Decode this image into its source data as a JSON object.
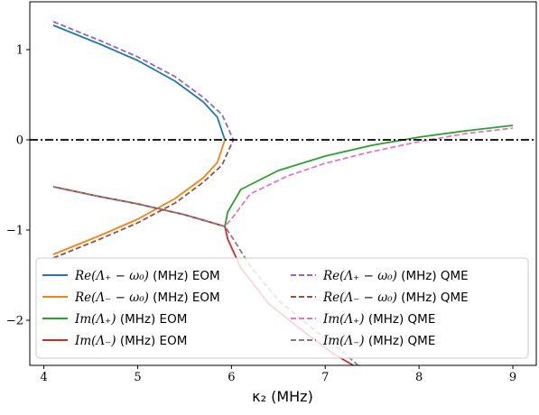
{
  "chart_data": {
    "type": "line",
    "title": "",
    "xlabel": "κ₂ (MHz)",
    "ylabel": "",
    "xlim": [
      3.85,
      9.25
    ],
    "ylim": [
      -2.5,
      1.53
    ],
    "xticks": [
      4,
      5,
      6,
      7,
      8,
      9
    ],
    "yticks": [
      -2,
      -1,
      0,
      1
    ],
    "ytick_labels": [
      "−2",
      "−1",
      "0",
      "1"
    ],
    "grid": false,
    "legend_position": "lower-left",
    "reference_line": {
      "y": 0,
      "style": "dash-dot",
      "color": "#000000"
    },
    "ep": {
      "eom_kappa2": 5.93,
      "qme_kappa2": 6.02
    },
    "series": [
      {
        "name": "Re(Λ₊ − ω₀) (MHz)  EOM",
        "color": "#1f77b4",
        "dash": "solid",
        "x": [
          4.1,
          4.6,
          5.0,
          5.4,
          5.7,
          5.85,
          5.93
        ],
        "y": [
          1.27,
          1.06,
          0.88,
          0.65,
          0.42,
          0.25,
          0.0
        ]
      },
      {
        "name": "Re(Λ₋ − ω₀) (MHz)  EOM",
        "color": "#ff7f0e",
        "dash": "solid",
        "x": [
          4.1,
          4.6,
          5.0,
          5.4,
          5.7,
          5.85,
          5.93
        ],
        "y": [
          -1.27,
          -1.06,
          -0.88,
          -0.65,
          -0.42,
          -0.25,
          0.0
        ]
      },
      {
        "name": "Im(Λ₊) (MHz)  EOM",
        "color": "#2ca02c",
        "dash": "solid",
        "x": [
          4.1,
          4.6,
          5.0,
          5.5,
          5.93,
          5.96,
          6.1,
          6.5,
          7.0,
          7.5,
          8.0,
          8.5,
          9.0
        ],
        "y": [
          -0.52,
          -0.63,
          -0.71,
          -0.83,
          -0.96,
          -0.8,
          -0.55,
          -0.34,
          -0.18,
          -0.06,
          0.03,
          0.1,
          0.16
        ]
      },
      {
        "name": "Im(Λ₋) (MHz)  EOM",
        "color": "#d62728",
        "dash": "solid",
        "x": [
          4.1,
          4.6,
          5.0,
          5.5,
          5.93,
          5.96,
          6.1,
          6.4,
          6.8,
          7.1,
          7.3
        ],
        "y": [
          -0.52,
          -0.63,
          -0.71,
          -0.83,
          -0.96,
          -1.1,
          -1.42,
          -1.82,
          -2.15,
          -2.38,
          -2.5
        ]
      },
      {
        "name": "Re(Λ₊ − ω₀) (MHz)  QME",
        "color": "#9467bd",
        "dash": "dashed",
        "x": [
          4.1,
          4.6,
          5.0,
          5.4,
          5.7,
          5.9,
          6.02
        ],
        "y": [
          1.31,
          1.1,
          0.92,
          0.7,
          0.47,
          0.28,
          0.0
        ]
      },
      {
        "name": "Re(Λ₋ − ω₀) (MHz)  QME",
        "color": "#8c564b",
        "dash": "dashed",
        "x": [
          4.1,
          4.6,
          5.0,
          5.4,
          5.7,
          5.9,
          6.02
        ],
        "y": [
          -1.31,
          -1.1,
          -0.92,
          -0.7,
          -0.47,
          -0.28,
          0.0
        ]
      },
      {
        "name": "Im(Λ₊) (MHz)  QME",
        "color": "#e377c2",
        "dash": "dashed",
        "x": [
          4.1,
          4.6,
          5.0,
          5.5,
          5.93,
          6.02,
          6.2,
          6.6,
          7.0,
          7.5,
          8.0,
          8.5,
          9.0
        ],
        "y": [
          -0.52,
          -0.63,
          -0.71,
          -0.83,
          -0.96,
          -0.85,
          -0.6,
          -0.4,
          -0.26,
          -0.13,
          -0.02,
          0.07,
          0.13
        ]
      },
      {
        "name": "Im(Λ₋) (MHz)  QME",
        "color": "#7f7f7f",
        "dash": "dashed",
        "x": [
          4.1,
          4.6,
          5.0,
          5.5,
          5.93,
          6.02,
          6.2,
          6.5,
          6.9,
          7.2,
          7.35
        ],
        "y": [
          -0.52,
          -0.63,
          -0.71,
          -0.83,
          -0.96,
          -1.1,
          -1.4,
          -1.78,
          -2.12,
          -2.36,
          -2.5
        ]
      }
    ]
  },
  "legend": {
    "left": [
      {
        "math": "Re(Λ₊ − ω₀)",
        "suffix": " (MHz)  EOM",
        "color": "#1f77b4",
        "dash": "solid"
      },
      {
        "math": "Re(Λ₋ − ω₀)",
        "suffix": " (MHz)  EOM",
        "color": "#ff7f0e",
        "dash": "solid"
      },
      {
        "math": "Im(Λ₊)",
        "suffix": " (MHz)  EOM",
        "color": "#2ca02c",
        "dash": "solid"
      },
      {
        "math": "Im(Λ₋)",
        "suffix": " (MHz)  EOM",
        "color": "#d62728",
        "dash": "solid"
      }
    ],
    "right": [
      {
        "math": "Re(Λ₊ − ω₀)",
        "suffix": " (MHz)  QME",
        "color": "#9467bd",
        "dash": "dashed"
      },
      {
        "math": "Re(Λ₋ − ω₀)",
        "suffix": " (MHz)  QME",
        "color": "#8c564b",
        "dash": "dashed"
      },
      {
        "math": "Im(Λ₊)",
        "suffix": " (MHz)  QME",
        "color": "#e377c2",
        "dash": "dashed"
      },
      {
        "math": "Im(Λ₋)",
        "suffix": " (MHz)  QME",
        "color": "#7f7f7f",
        "dash": "dashed"
      }
    ]
  }
}
